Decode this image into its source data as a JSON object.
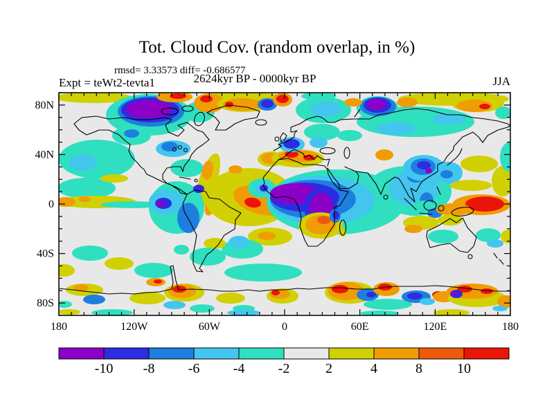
{
  "header": {
    "title": "Tot. Cloud Cov. (random overlap, in %)",
    "stats": "rmsd= 3.33573 diff= -0.686577",
    "period": "2624kyr BP - 0000kyr BP",
    "experiment": "Expt = teWt2-tevta1",
    "season": "JJA"
  },
  "chart_data": {
    "type": "heatmap",
    "subtype": "filled-contour world map, equirectangular projection",
    "title": "Tot. Cloud Cov. (random overlap, in %)",
    "subtitle": "2624kyr BP - 0000kyr BP",
    "experiment": "teWt2-tevta1",
    "season": "JJA",
    "rmsd": 3.33573,
    "diff": -0.686577,
    "units": "%",
    "x_axis": {
      "range_deg": [
        -180,
        180
      ],
      "major_step_deg": 60,
      "minor_step_deg": 10,
      "tick_labels": [
        {
          "value": -180,
          "label": "180"
        },
        {
          "value": -120,
          "label": "120W"
        },
        {
          "value": -60,
          "label": "60W"
        },
        {
          "value": 0,
          "label": "0"
        },
        {
          "value": 60,
          "label": "60E"
        },
        {
          "value": 120,
          "label": "120E"
        },
        {
          "value": 180,
          "label": "180"
        }
      ]
    },
    "y_axis": {
      "range_deg": [
        -90,
        90
      ],
      "major_step_deg": 40,
      "minor_step_deg": 10,
      "tick_labels": [
        {
          "value": 80,
          "label": "80N"
        },
        {
          "value": 40,
          "label": "40N"
        },
        {
          "value": 0,
          "label": "0"
        },
        {
          "value": -40,
          "label": "40S"
        },
        {
          "value": -80,
          "label": "80S"
        }
      ]
    },
    "colorbar": {
      "boundary_labels": [
        "-10",
        "-8",
        "-6",
        "-4",
        "-2",
        "2",
        "4",
        "8",
        "10"
      ],
      "levels": [
        -10,
        -8,
        -6,
        -4,
        -2,
        2,
        4,
        8,
        10
      ],
      "colors": [
        "#8c00c8",
        "#2d2ce0",
        "#1e7ee0",
        "#43c6ee",
        "#2fdfc0",
        "#e8e8e8",
        "#d0d004",
        "#f09c04",
        "#ee5a0c",
        "#eb1408"
      ],
      "background_level_color": "#e8e8e8"
    },
    "anomaly_regions": [
      {
        "region": "northern Canada / Hudson Bay",
        "sign": "negative",
        "magnitude": "< -10"
      },
      {
        "region": "Sahel and central Africa",
        "sign": "negative",
        "magnitude": "< -10"
      },
      {
        "region": "Canadian Arctic islands, Greenland, Iceland",
        "sign": "positive",
        "magnitude": "4 to >10"
      },
      {
        "region": "Mediterranean",
        "sign": "positive",
        "magnitude": "4 to >10"
      },
      {
        "region": "tropical west Pacific north of New Guinea",
        "sign": "positive",
        "magnitude": "> 10"
      },
      {
        "region": "Peru / tropical South America",
        "sign": "positive",
        "magnitude": "4 to >10"
      },
      {
        "region": "Siberia, Kara Sea, East Asia, Indian Ocean, Panama region",
        "sign": "negative",
        "magnitude": "-2 to -10"
      },
      {
        "region": "Antarctic coastal ring",
        "sign": "mixed",
        "magnitude": "alternating -10 to +10"
      },
      {
        "region": "subtropical oceans",
        "sign": "neutral",
        "magnitude": "-2 to 2"
      }
    ],
    "field_blobs": [
      [
        135,
        141,
        55,
        8,
        0,
        6
      ],
      [
        350,
        142,
        62,
        9,
        0,
        6
      ],
      [
        655,
        143,
        80,
        10,
        0,
        6
      ],
      [
        460,
        139,
        25,
        6,
        0,
        4
      ],
      [
        215,
        166,
        62,
        30,
        0,
        4
      ],
      [
        288,
        162,
        22,
        15,
        0,
        4
      ],
      [
        218,
        161,
        48,
        22,
        0,
        2
      ],
      [
        217,
        159,
        42,
        18,
        0,
        1
      ],
      [
        215,
        158,
        33,
        13,
        0,
        0
      ],
      [
        252,
        140,
        26,
        8,
        0,
        7
      ],
      [
        257,
        139,
        12,
        4,
        0,
        9
      ],
      [
        302,
        149,
        22,
        14,
        0,
        7
      ],
      [
        298,
        143,
        9,
        5,
        0,
        9
      ],
      [
        352,
        150,
        38,
        12,
        0,
        6
      ],
      [
        350,
        151,
        28,
        9,
        0,
        7
      ],
      [
        331,
        151,
        6,
        4,
        0,
        9
      ],
      [
        386,
        151,
        14,
        9,
        0,
        2
      ],
      [
        386,
        150,
        9,
        6,
        0,
        1
      ],
      [
        408,
        144,
        14,
        10,
        0,
        7
      ],
      [
        408,
        143,
        9,
        6,
        0,
        9
      ],
      [
        467,
        159,
        40,
        19,
        0,
        4
      ],
      [
        470,
        158,
        22,
        11,
        0,
        3
      ],
      [
        600,
        176,
        85,
        22,
        0,
        4
      ],
      [
        572,
        186,
        28,
        9,
        0,
        3
      ],
      [
        648,
        172,
        24,
        8,
        0,
        3
      ],
      [
        505,
        196,
        18,
        8,
        0,
        4
      ],
      [
        545,
        156,
        30,
        17,
        0,
        4
      ],
      [
        546,
        154,
        26,
        14,
        0,
        2
      ],
      [
        545,
        152,
        20,
        11,
        0,
        1
      ],
      [
        544,
        151,
        14,
        8,
        0,
        0
      ],
      [
        510,
        148,
        13,
        6,
        0,
        7
      ],
      [
        588,
        148,
        15,
        7,
        0,
        7
      ],
      [
        690,
        150,
        38,
        12,
        0,
        6
      ],
      [
        685,
        153,
        26,
        9,
        0,
        7
      ],
      [
        700,
        154,
        8,
        4,
        0,
        9
      ],
      [
        727,
        163,
        12,
        9,
        0,
        4
      ],
      [
        140,
        230,
        55,
        28,
        0,
        4
      ],
      [
        120,
        235,
        20,
        12,
        0,
        3
      ],
      [
        190,
        196,
        28,
        14,
        0,
        4
      ],
      [
        190,
        193,
        11,
        6,
        0,
        2
      ],
      [
        125,
        272,
        42,
        15,
        0,
        4
      ],
      [
        140,
        292,
        57,
        9,
        0,
        6
      ],
      [
        95,
        292,
        14,
        7,
        0,
        7
      ],
      [
        122,
        288,
        9,
        4,
        0,
        7
      ],
      [
        165,
        258,
        20,
        6,
        0,
        6
      ],
      [
        190,
        296,
        45,
        5,
        0,
        4
      ],
      [
        250,
        215,
        25,
        12,
        0,
        3
      ],
      [
        245,
        212,
        12,
        7,
        0,
        2
      ],
      [
        270,
        243,
        24,
        13,
        0,
        4
      ],
      [
        300,
        262,
        13,
        42,
        18,
        6
      ],
      [
        300,
        246,
        8,
        14,
        10,
        7
      ],
      [
        303,
        300,
        7,
        12,
        15,
        7
      ],
      [
        360,
        285,
        65,
        42,
        0,
        6
      ],
      [
        340,
        245,
        10,
        6,
        0,
        7
      ],
      [
        378,
        290,
        42,
        20,
        15,
        7
      ],
      [
        365,
        293,
        12,
        7,
        10,
        9
      ],
      [
        255,
        300,
        40,
        38,
        0,
        4
      ],
      [
        240,
        292,
        25,
        18,
        0,
        3
      ],
      [
        236,
        294,
        12,
        8,
        0,
        1
      ],
      [
        232,
        295,
        6,
        4,
        0,
        0
      ],
      [
        287,
        273,
        8,
        6,
        0,
        1
      ],
      [
        272,
        315,
        16,
        22,
        0,
        2
      ],
      [
        378,
        272,
        20,
        14,
        0,
        4
      ],
      [
        380,
        272,
        12,
        9,
        0,
        3
      ],
      [
        381,
        272,
        6,
        5,
        0,
        1
      ],
      [
        391,
        230,
        19,
        11,
        0,
        6
      ],
      [
        390,
        229,
        13,
        8,
        0,
        7
      ],
      [
        430,
        229,
        38,
        13,
        0,
        6
      ],
      [
        431,
        226,
        29,
        9,
        0,
        7
      ],
      [
        421,
        223,
        10,
        5,
        0,
        9
      ],
      [
        446,
        228,
        8,
        4,
        0,
        9
      ],
      [
        421,
        209,
        19,
        11,
        0,
        3
      ],
      [
        421,
        208,
        12,
        7,
        0,
        1
      ],
      [
        465,
        191,
        26,
        12,
        0,
        4
      ],
      [
        460,
        206,
        13,
        8,
        0,
        3
      ],
      [
        485,
        292,
        100,
        47,
        0,
        4
      ],
      [
        600,
        276,
        52,
        36,
        0,
        4
      ],
      [
        590,
        266,
        55,
        26,
        0,
        4
      ],
      [
        465,
        290,
        76,
        36,
        0,
        3
      ],
      [
        598,
        272,
        36,
        26,
        0,
        3
      ],
      [
        452,
        288,
        62,
        28,
        0,
        2
      ],
      [
        440,
        285,
        50,
        21,
        0,
        1
      ],
      [
        425,
        280,
        35,
        15,
        0,
        0
      ],
      [
        463,
        299,
        24,
        27,
        0,
        1
      ],
      [
        464,
        300,
        17,
        21,
        0,
        0
      ],
      [
        601,
        256,
        13,
        8,
        0,
        2
      ],
      [
        616,
        291,
        10,
        13,
        0,
        2
      ],
      [
        555,
        224,
        13,
        8,
        0,
        7
      ],
      [
        612,
        243,
        30,
        19,
        0,
        3
      ],
      [
        648,
        250,
        20,
        16,
        0,
        3
      ],
      [
        611,
        241,
        18,
        12,
        0,
        2
      ],
      [
        645,
        252,
        9,
        6,
        0,
        2
      ],
      [
        612,
        239,
        10,
        6,
        0,
        1
      ],
      [
        619,
        247,
        5,
        4,
        0,
        0
      ],
      [
        612,
        300,
        18,
        10,
        0,
        4
      ],
      [
        628,
        308,
        11,
        7,
        0,
        2
      ],
      [
        680,
        268,
        30,
        8,
        0,
        6
      ],
      [
        695,
        296,
        42,
        15,
        0,
        7
      ],
      [
        700,
        295,
        28,
        11,
        0,
        9
      ],
      [
        655,
        303,
        25,
        9,
        0,
        7
      ],
      [
        608,
        322,
        26,
        10,
        0,
        6
      ],
      [
        597,
        331,
        13,
        6,
        0,
        7
      ],
      [
        650,
        318,
        18,
        8,
        0,
        6
      ],
      [
        692,
        237,
        27,
        12,
        0,
        6
      ],
      [
        726,
        262,
        16,
        22,
        0,
        6
      ],
      [
        735,
        227,
        13,
        21,
        0,
        4
      ],
      [
        640,
        342,
        22,
        10,
        0,
        4
      ],
      [
        705,
        340,
        18,
        10,
        0,
        4
      ],
      [
        715,
        352,
        12,
        6,
        0,
        3
      ],
      [
        735,
        342,
        12,
        10,
        0,
        6
      ],
      [
        390,
        342,
        32,
        13,
        0,
        6
      ],
      [
        385,
        341,
        13,
        6,
        0,
        7
      ],
      [
        350,
        360,
        30,
        14,
        0,
        4
      ],
      [
        345,
        350,
        15,
        9,
        0,
        3
      ],
      [
        310,
        352,
        16,
        8,
        0,
        6
      ],
      [
        300,
        371,
        26,
        13,
        0,
        4
      ],
      [
        463,
        326,
        32,
        19,
        0,
        6
      ],
      [
        463,
        325,
        22,
        14,
        0,
        7
      ],
      [
        468,
        318,
        10,
        6,
        0,
        8
      ],
      [
        484,
        312,
        8,
        10,
        0,
        2
      ],
      [
        485,
        311,
        5,
        6,
        0,
        1
      ],
      [
        495,
        336,
        5,
        6,
        0,
        6
      ],
      [
        130,
        366,
        26,
        11,
        0,
        4
      ],
      [
        172,
        381,
        21,
        9,
        0,
        6
      ],
      [
        222,
        391,
        28,
        11,
        0,
        4
      ],
      [
        262,
        361,
        11,
        7,
        0,
        4
      ],
      [
        92,
        391,
        16,
        9,
        0,
        6
      ],
      [
        380,
        394,
        56,
        13,
        0,
        4
      ],
      [
        560,
        440,
        35,
        8,
        0,
        4
      ],
      [
        122,
        419,
        27,
        9,
        0,
        6
      ],
      [
        117,
        416,
        11,
        5,
        0,
        7
      ],
      [
        136,
        433,
        16,
        7,
        0,
        2
      ],
      [
        93,
        440,
        11,
        5,
        0,
        4
      ],
      [
        213,
        431,
        26,
        9,
        0,
        6
      ],
      [
        252,
        441,
        16,
        6,
        0,
        3
      ],
      [
        292,
        446,
        18,
        6,
        0,
        4
      ],
      [
        266,
        423,
        29,
        13,
        0,
        6
      ],
      [
        263,
        421,
        20,
        10,
        0,
        7
      ],
      [
        259,
        418,
        10,
        5,
        0,
        9
      ],
      [
        225,
        408,
        14,
        6,
        0,
        7
      ],
      [
        228,
        407,
        6,
        3,
        0,
        9
      ],
      [
        333,
        431,
        21,
        8,
        0,
        6
      ],
      [
        352,
        446,
        16,
        5,
        0,
        4
      ],
      [
        408,
        428,
        23,
        11,
        0,
        6
      ],
      [
        404,
        425,
        15,
        7,
        0,
        7
      ],
      [
        398,
        423,
        6,
        4,
        0,
        9
      ],
      [
        505,
        423,
        36,
        16,
        0,
        6
      ],
      [
        500,
        421,
        26,
        13,
        0,
        7
      ],
      [
        491,
        418,
        12,
        6,
        0,
        9
      ],
      [
        531,
        426,
        16,
        9,
        0,
        2
      ],
      [
        536,
        426,
        7,
        4,
        0,
        1
      ],
      [
        558,
        418,
        19,
        10,
        0,
        7
      ],
      [
        556,
        415,
        10,
        5,
        0,
        9
      ],
      [
        601,
        429,
        21,
        9,
        0,
        2
      ],
      [
        599,
        428,
        11,
        5,
        0,
        1
      ],
      [
        617,
        436,
        11,
        5,
        0,
        3
      ],
      [
        633,
        426,
        9,
        5,
        0,
        9
      ],
      [
        641,
        429,
        16,
        8,
        0,
        7
      ],
      [
        689,
        431,
        42,
        13,
        0,
        6
      ],
      [
        682,
        421,
        37,
        11,
        0,
        7
      ],
      [
        671,
        418,
        11,
        5,
        0,
        9
      ],
      [
        703,
        421,
        9,
        4,
        0,
        9
      ],
      [
        659,
        425,
        9,
        6,
        0,
        1
      ],
      [
        656,
        424,
        5,
        3,
        0,
        0
      ],
      [
        731,
        436,
        13,
        9,
        0,
        7
      ],
      [
        722,
        446,
        11,
        4,
        0,
        3
      ],
      [
        162,
        452,
        30,
        5,
        0,
        4
      ],
      [
        352,
        452,
        24,
        4,
        0,
        3
      ],
      [
        548,
        453,
        28,
        4,
        0,
        4
      ],
      [
        652,
        452,
        26,
        5,
        0,
        6
      ],
      [
        100,
        451,
        16,
        4,
        0,
        6
      ]
    ]
  }
}
